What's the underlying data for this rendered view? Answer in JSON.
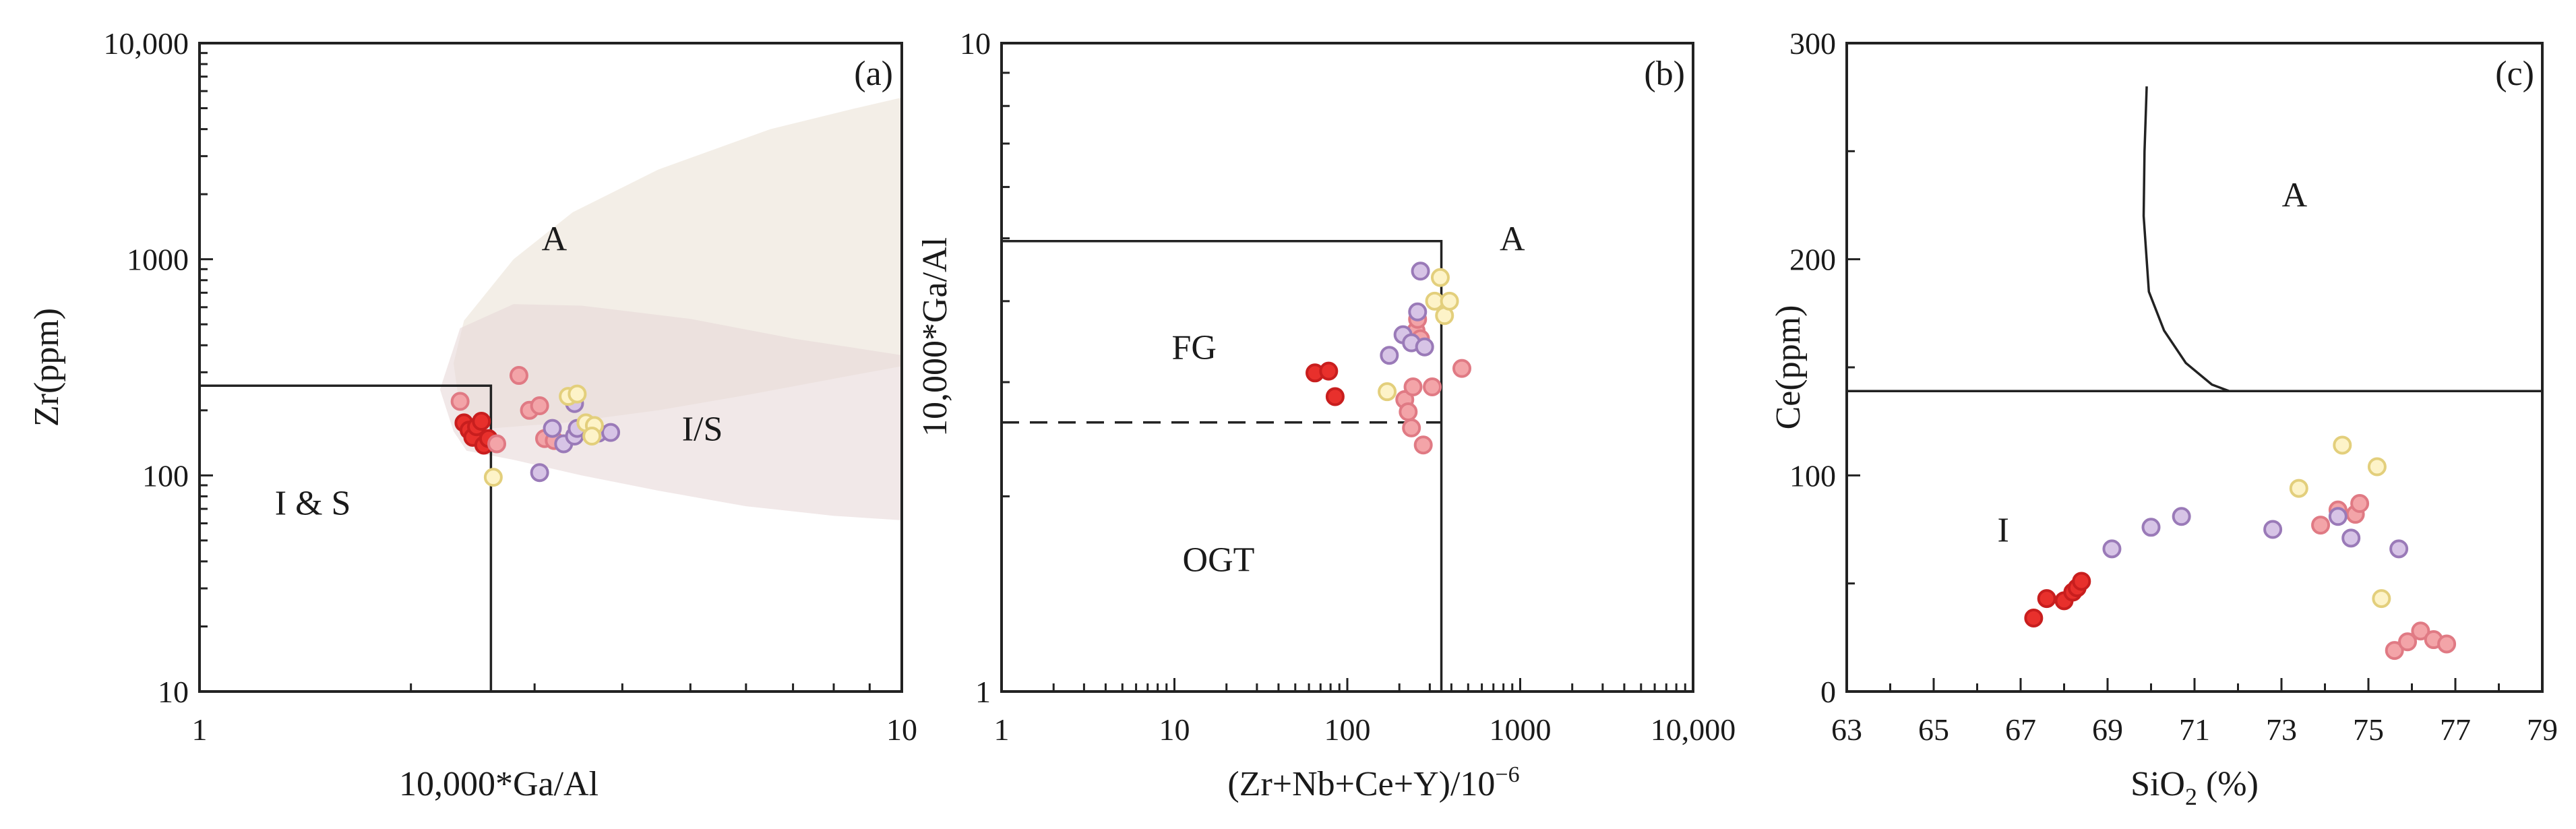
{
  "chart_data": [
    {
      "type": "scatter",
      "panel": "(a)",
      "xlabel": "10,000*Ga/Al",
      "ylabel": "Zr(ppm)",
      "xscale": "log",
      "yscale": "log",
      "xlim": [
        1,
        10
      ],
      "ylim": [
        10,
        10000
      ],
      "xticks": [
        {
          "v": 1,
          "label": "1"
        },
        {
          "v": 10,
          "label": "10"
        }
      ],
      "yticks": [
        {
          "v": 10,
          "label": "10"
        },
        {
          "v": 100,
          "label": "100"
        },
        {
          "v": 1000,
          "label": "1000"
        },
        {
          "v": 10000,
          "label": "10,000"
        }
      ],
      "regions": [
        {
          "label": "A",
          "x": 3.2,
          "y": 1250
        },
        {
          "label": "I/S",
          "x": 5.2,
          "y": 165
        },
        {
          "label": "I & S",
          "x": 1.45,
          "y": 75
        }
      ],
      "boundary": [
        [
          1,
          260
        ],
        [
          2.6,
          260
        ],
        [
          2.6,
          10
        ]
      ],
      "fields": [
        {
          "name": "A-field",
          "color": "#eae0d3",
          "opacity": 0.55,
          "points": [
            [
              2.38,
              520
            ],
            [
              2.8,
              1000
            ],
            [
              3.4,
              1650
            ],
            [
              4.5,
              2600
            ],
            [
              6.5,
              4000
            ],
            [
              8.6,
              5000
            ],
            [
              10,
              5600
            ],
            [
              10,
              320
            ],
            [
              8,
              280
            ],
            [
              6,
              235
            ],
            [
              4.5,
              200
            ],
            [
              3.3,
              175
            ],
            [
              2.6,
              165
            ],
            [
              2.35,
              200
            ],
            [
              2.3,
              330
            ]
          ]
        },
        {
          "name": "I/S-field",
          "color": "#e8d9d9",
          "opacity": 0.6,
          "points": [
            [
              2.3,
              160
            ],
            [
              2.2,
              250
            ],
            [
              2.35,
              480
            ],
            [
              2.8,
              620
            ],
            [
              3.5,
              610
            ],
            [
              5,
              530
            ],
            [
              7,
              430
            ],
            [
              10,
              360
            ],
            [
              10,
              62
            ],
            [
              8,
              65
            ],
            [
              6,
              72
            ],
            [
              4.5,
              85
            ],
            [
              3.5,
              100
            ],
            [
              2.8,
              118
            ],
            [
              2.4,
              130
            ]
          ]
        }
      ],
      "series": [
        {
          "name": "group1",
          "color": "#e8302c",
          "stroke": "#c81e1e",
          "points": [
            [
              2.38,
              175
            ],
            [
              2.42,
              162
            ],
            [
              2.45,
              150
            ],
            [
              2.48,
              168
            ],
            [
              2.52,
              178
            ],
            [
              2.54,
              138
            ],
            [
              2.58,
              148
            ]
          ]
        },
        {
          "name": "group2",
          "color": "#f3a4a8",
          "stroke": "#e07a84",
          "points": [
            [
              2.35,
              220
            ],
            [
              2.65,
              140
            ],
            [
              2.85,
              290
            ],
            [
              2.95,
              200
            ],
            [
              3.05,
              210
            ],
            [
              3.1,
              148
            ],
            [
              3.2,
              145
            ]
          ]
        },
        {
          "name": "group3",
          "color": "#d7c4e6",
          "stroke": "#9a7ab8",
          "points": [
            [
              3.05,
              103
            ],
            [
              3.18,
              165
            ],
            [
              3.3,
              140
            ],
            [
              3.42,
              152
            ],
            [
              3.45,
              165
            ],
            [
              3.6,
              170
            ],
            [
              3.7,
              157
            ],
            [
              3.85,
              158
            ],
            [
              3.42,
              215
            ]
          ]
        },
        {
          "name": "group4",
          "color": "#fdf3c8",
          "stroke": "#e3cf7c",
          "points": [
            [
              2.62,
              98
            ],
            [
              3.35,
              232
            ],
            [
              3.45,
              238
            ],
            [
              3.55,
              175
            ],
            [
              3.65,
              170
            ],
            [
              3.62,
              152
            ]
          ]
        }
      ]
    },
    {
      "type": "scatter",
      "panel": "(b)",
      "xlabel": "(Zr+Nb+Ce+Y)/10",
      "xlabel_sup": "−6",
      "ylabel": "10,000*Ga/Al",
      "xscale": "log",
      "yscale": "log",
      "xlim": [
        1,
        10000
      ],
      "ylim": [
        1,
        10
      ],
      "xticks": [
        {
          "v": 1,
          "label": "1"
        },
        {
          "v": 10,
          "label": "10"
        },
        {
          "v": 100,
          "label": "100"
        },
        {
          "v": 1000,
          "label": "1000"
        },
        {
          "v": 10000,
          "label": "10,000"
        }
      ],
      "yticks": [
        {
          "v": 1,
          "label": "1"
        },
        {
          "v": 10,
          "label": "10"
        }
      ],
      "regions": [
        {
          "label": "FG",
          "x": 13,
          "y": 3.4
        },
        {
          "label": "OGT",
          "x": 18,
          "y": 1.6
        },
        {
          "label": "A",
          "x": 900,
          "y": 5.0
        }
      ],
      "boundary": [
        [
          1,
          4.95
        ],
        [
          350,
          4.95
        ],
        [
          350,
          1
        ]
      ],
      "dashed": [
        [
          1,
          2.6
        ],
        [
          350,
          2.6
        ]
      ],
      "series": [
        {
          "name": "group1",
          "color": "#e8302c",
          "stroke": "#c81e1e",
          "points": [
            [
              65,
              3.1
            ],
            [
              78,
              3.12
            ],
            [
              85,
              2.85
            ]
          ]
        },
        {
          "name": "group2",
          "color": "#f3a4a8",
          "stroke": "#e07a84",
          "points": [
            [
              215,
              2.82
            ],
            [
              225,
              2.7
            ],
            [
              235,
              2.55
            ],
            [
              240,
              2.95
            ],
            [
              250,
              3.6
            ],
            [
              255,
              3.75
            ],
            [
              265,
              3.5
            ],
            [
              275,
              2.4
            ],
            [
              310,
              2.95
            ],
            [
              460,
              3.15
            ]
          ]
        },
        {
          "name": "group3",
          "color": "#d7c4e6",
          "stroke": "#9a7ab8",
          "points": [
            [
              175,
              3.3
            ],
            [
              210,
              3.55
            ],
            [
              235,
              3.45
            ],
            [
              255,
              3.85
            ],
            [
              265,
              4.45
            ],
            [
              280,
              3.4
            ]
          ]
        },
        {
          "name": "group4",
          "color": "#fdf3c8",
          "stroke": "#e3cf7c",
          "points": [
            [
              170,
              2.9
            ],
            [
              320,
              4.0
            ],
            [
              345,
              4.35
            ],
            [
              365,
              3.8
            ],
            [
              390,
              4.0
            ]
          ]
        }
      ]
    },
    {
      "type": "scatter",
      "panel": "(c)",
      "xlabel": "SiO",
      "xlabel_sub": "2",
      "xlabel_suffix": " (%)",
      "ylabel": "Ce(ppm)",
      "xscale": "linear",
      "yscale": "linear",
      "xlim": [
        63,
        79
      ],
      "ylim": [
        0,
        300
      ],
      "xticks": [
        {
          "v": 63,
          "label": "63"
        },
        {
          "v": 65,
          "label": "65"
        },
        {
          "v": 67,
          "label": "67"
        },
        {
          "v": 69,
          "label": "69"
        },
        {
          "v": 71,
          "label": "71"
        },
        {
          "v": 73,
          "label": "73"
        },
        {
          "v": 75,
          "label": "75"
        },
        {
          "v": 77,
          "label": "77"
        },
        {
          "v": 79,
          "label": "79"
        }
      ],
      "yticks": [
        {
          "v": 0,
          "label": "0"
        },
        {
          "v": 100,
          "label": "100"
        },
        {
          "v": 200,
          "label": "200"
        },
        {
          "v": 300,
          "label": "300"
        }
      ],
      "regions": [
        {
          "label": "A",
          "x": 73.3,
          "y": 230
        },
        {
          "label": "I",
          "x": 66.6,
          "y": 75
        }
      ],
      "hline": 139,
      "curve": [
        [
          69.9,
          280
        ],
        [
          69.85,
          250
        ],
        [
          69.83,
          220
        ],
        [
          69.95,
          185
        ],
        [
          70.3,
          167
        ],
        [
          70.8,
          152
        ],
        [
          71.4,
          142
        ],
        [
          71.8,
          139
        ]
      ],
      "series": [
        {
          "name": "group1",
          "color": "#e8302c",
          "stroke": "#c81e1e",
          "points": [
            [
              67.3,
              34
            ],
            [
              67.6,
              43
            ],
            [
              68.0,
              42
            ],
            [
              68.2,
              46
            ],
            [
              68.3,
              48
            ],
            [
              68.4,
              51
            ]
          ]
        },
        {
          "name": "group2",
          "color": "#f3a4a8",
          "stroke": "#e07a84",
          "points": [
            [
              73.9,
              77
            ],
            [
              74.3,
              84
            ],
            [
              74.7,
              82
            ],
            [
              74.8,
              87
            ],
            [
              75.6,
              19
            ],
            [
              75.9,
              23
            ],
            [
              76.2,
              28
            ],
            [
              76.5,
              24
            ],
            [
              76.8,
              22
            ]
          ]
        },
        {
          "name": "group3",
          "color": "#d7c4e6",
          "stroke": "#9a7ab8",
          "points": [
            [
              69.1,
              66
            ],
            [
              70.0,
              76
            ],
            [
              70.7,
              81
            ],
            [
              72.8,
              75
            ],
            [
              74.3,
              81
            ],
            [
              74.6,
              71
            ],
            [
              75.7,
              66
            ]
          ]
        },
        {
          "name": "group4",
          "color": "#fdf3c8",
          "stroke": "#e3cf7c",
          "points": [
            [
              73.4,
              94
            ],
            [
              74.4,
              114
            ],
            [
              75.2,
              104
            ],
            [
              75.3,
              43
            ]
          ]
        }
      ]
    }
  ]
}
